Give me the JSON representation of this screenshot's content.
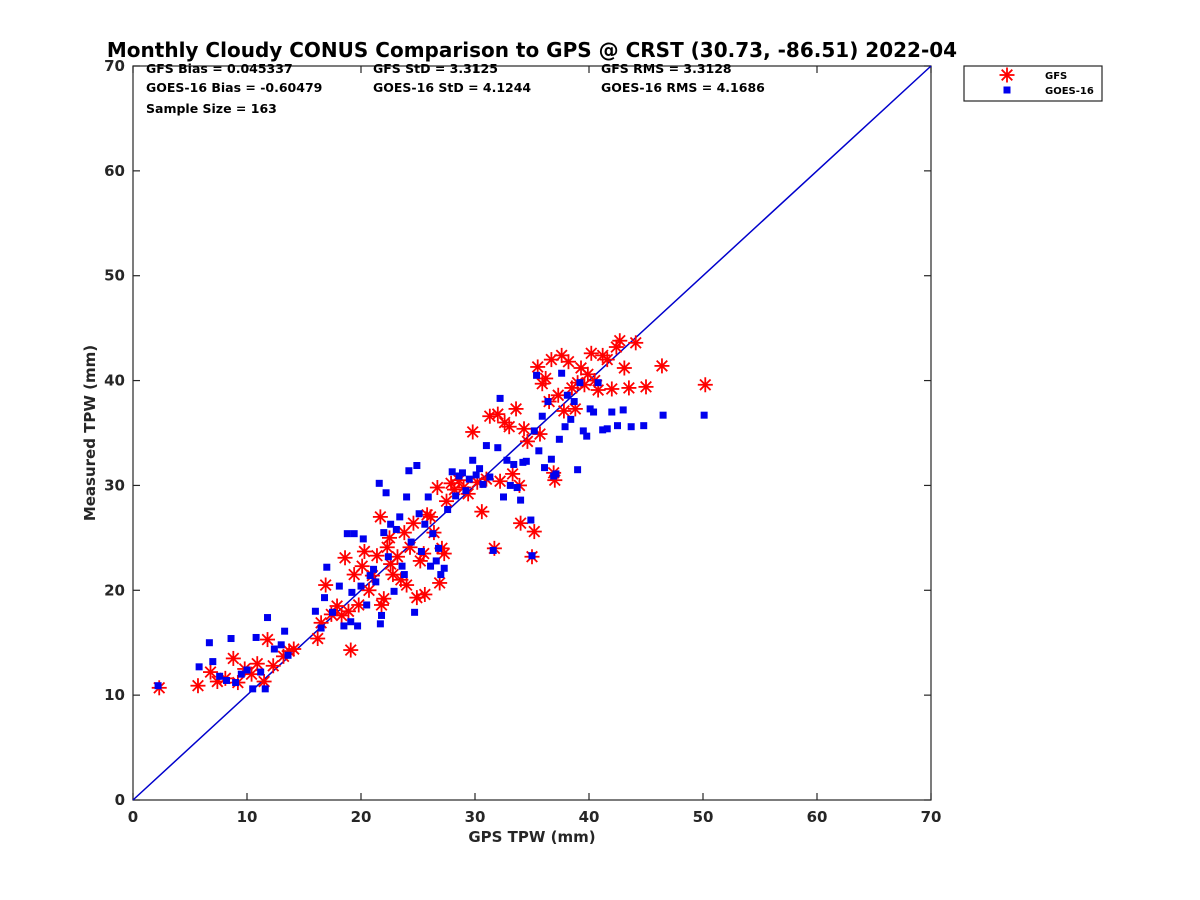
{
  "chart_data": {
    "type": "scatter",
    "title": "Monthly Cloudy CONUS Comparison to GPS @ CRST (30.73, -86.51) 2022-04",
    "xlabel": "GPS TPW (mm)",
    "ylabel": "Measured TPW (mm)",
    "xlim": [
      0,
      70
    ],
    "ylim": [
      0,
      70
    ],
    "xticks": [
      "0",
      "10",
      "20",
      "30",
      "40",
      "50",
      "60",
      "70"
    ],
    "yticks": [
      "0",
      "10",
      "20",
      "30",
      "40",
      "50",
      "60",
      "70"
    ],
    "grid": false,
    "legend_position": "top-right",
    "stats": [
      "GFS Bias = 0.045337",
      "GFS StD = 3.3125",
      "GFS RMS = 3.3128",
      "GOES-16 Bias = -0.60479",
      "GOES-16 StD = 4.1244",
      "GOES-16 RMS = 4.1686",
      "Sample Size = 163"
    ],
    "reference_line": {
      "x": [
        0,
        70
      ],
      "y": [
        0,
        70
      ],
      "color": "#0000cc"
    },
    "series": [
      {
        "name": "GFS",
        "marker": "asterisk",
        "color": "#ff0000",
        "points": [
          [
            2.3,
            10.7
          ],
          [
            5.7,
            10.9
          ],
          [
            6.8,
            12.2
          ],
          [
            7.4,
            11.3
          ],
          [
            8.1,
            11.6
          ],
          [
            8.8,
            13.5
          ],
          [
            9.2,
            11.2
          ],
          [
            9.8,
            12.5
          ],
          [
            10.4,
            12.0
          ],
          [
            10.9,
            13.0
          ],
          [
            11.5,
            11.3
          ],
          [
            11.8,
            15.3
          ],
          [
            12.3,
            12.8
          ],
          [
            13.2,
            13.7
          ],
          [
            13.7,
            14.2
          ],
          [
            14.1,
            14.4
          ],
          [
            16.2,
            15.4
          ],
          [
            16.5,
            16.9
          ],
          [
            16.9,
            20.5
          ],
          [
            17.4,
            17.7
          ],
          [
            17.9,
            18.5
          ],
          [
            18.3,
            17.6
          ],
          [
            18.6,
            23.1
          ],
          [
            18.9,
            18.0
          ],
          [
            19.1,
            14.3
          ],
          [
            19.4,
            21.5
          ],
          [
            19.8,
            18.6
          ],
          [
            20.1,
            22.3
          ],
          [
            20.3,
            23.7
          ],
          [
            20.7,
            20.0
          ],
          [
            21.0,
            21.4
          ],
          [
            21.4,
            23.3
          ],
          [
            21.7,
            27.0
          ],
          [
            21.8,
            18.6
          ],
          [
            22.0,
            19.2
          ],
          [
            22.3,
            24.1
          ],
          [
            22.5,
            25.0
          ],
          [
            22.6,
            22.5
          ],
          [
            22.8,
            21.5
          ],
          [
            23.2,
            23.2
          ],
          [
            23.5,
            21.0
          ],
          [
            23.8,
            25.5
          ],
          [
            24.0,
            20.5
          ],
          [
            24.3,
            24.1
          ],
          [
            24.6,
            26.4
          ],
          [
            24.9,
            19.3
          ],
          [
            25.2,
            22.8
          ],
          [
            25.5,
            23.5
          ],
          [
            25.6,
            19.6
          ],
          [
            25.8,
            27.2
          ],
          [
            26.1,
            27.0
          ],
          [
            26.4,
            25.5
          ],
          [
            26.7,
            29.8
          ],
          [
            26.9,
            20.7
          ],
          [
            27.1,
            24.0
          ],
          [
            27.3,
            23.5
          ],
          [
            27.5,
            28.5
          ],
          [
            27.9,
            30.2
          ],
          [
            28.2,
            29.6
          ],
          [
            28.6,
            30.5
          ],
          [
            29.0,
            29.8
          ],
          [
            29.4,
            29.2
          ],
          [
            29.8,
            35.1
          ],
          [
            30.2,
            30.3
          ],
          [
            30.6,
            27.5
          ],
          [
            31.0,
            30.6
          ],
          [
            31.3,
            36.6
          ],
          [
            31.7,
            24.0
          ],
          [
            32.0,
            36.8
          ],
          [
            32.2,
            30.4
          ],
          [
            32.6,
            36.0
          ],
          [
            33.0,
            35.6
          ],
          [
            33.3,
            31.1
          ],
          [
            33.6,
            37.3
          ],
          [
            33.9,
            30.0
          ],
          [
            34.0,
            26.4
          ],
          [
            34.3,
            35.4
          ],
          [
            34.6,
            34.2
          ],
          [
            35.0,
            23.2
          ],
          [
            35.2,
            25.6
          ],
          [
            35.5,
            41.3
          ],
          [
            35.7,
            34.9
          ],
          [
            35.9,
            39.7
          ],
          [
            36.2,
            40.2
          ],
          [
            36.5,
            38.0
          ],
          [
            36.7,
            42.0
          ],
          [
            36.9,
            31.2
          ],
          [
            37.0,
            30.5
          ],
          [
            37.3,
            38.6
          ],
          [
            37.6,
            42.4
          ],
          [
            37.8,
            37.1
          ],
          [
            38.2,
            41.8
          ],
          [
            38.5,
            39.3
          ],
          [
            38.8,
            37.3
          ],
          [
            39.0,
            39.8
          ],
          [
            39.3,
            41.2
          ],
          [
            39.6,
            39.6
          ],
          [
            39.9,
            40.6
          ],
          [
            40.2,
            42.6
          ],
          [
            40.5,
            40.0
          ],
          [
            40.8,
            39.1
          ],
          [
            41.2,
            42.4
          ],
          [
            41.6,
            42.0
          ],
          [
            42.0,
            39.2
          ],
          [
            42.4,
            43.2
          ],
          [
            42.7,
            43.8
          ],
          [
            43.1,
            41.2
          ],
          [
            43.5,
            39.3
          ],
          [
            44.1,
            43.6
          ],
          [
            45.0,
            39.4
          ],
          [
            46.4,
            41.4
          ],
          [
            50.2,
            39.6
          ]
        ]
      },
      {
        "name": "GOES-16",
        "marker": "square",
        "color": "#0000ee",
        "points": [
          [
            2.2,
            10.9
          ],
          [
            5.8,
            12.7
          ],
          [
            6.7,
            15.0
          ],
          [
            7.0,
            13.2
          ],
          [
            7.6,
            11.8
          ],
          [
            8.2,
            11.4
          ],
          [
            8.6,
            15.4
          ],
          [
            9.0,
            11.2
          ],
          [
            9.5,
            12.0
          ],
          [
            10.0,
            12.4
          ],
          [
            10.5,
            10.6
          ],
          [
            10.8,
            15.5
          ],
          [
            11.2,
            12.2
          ],
          [
            11.6,
            10.6
          ],
          [
            11.8,
            17.4
          ],
          [
            12.4,
            14.4
          ],
          [
            13.0,
            14.8
          ],
          [
            13.3,
            16.1
          ],
          [
            13.6,
            13.8
          ],
          [
            16.0,
            18.0
          ],
          [
            16.5,
            16.4
          ],
          [
            16.8,
            19.3
          ],
          [
            17.0,
            22.2
          ],
          [
            17.5,
            17.9
          ],
          [
            18.1,
            20.4
          ],
          [
            18.5,
            16.6
          ],
          [
            18.8,
            25.4
          ],
          [
            19.1,
            17.0
          ],
          [
            19.2,
            19.8
          ],
          [
            19.4,
            25.4
          ],
          [
            19.7,
            16.6
          ],
          [
            20.0,
            20.4
          ],
          [
            20.2,
            24.9
          ],
          [
            20.5,
            18.6
          ],
          [
            20.8,
            21.4
          ],
          [
            21.1,
            22.0
          ],
          [
            21.3,
            20.8
          ],
          [
            21.6,
            30.2
          ],
          [
            21.7,
            16.8
          ],
          [
            21.8,
            17.6
          ],
          [
            22.0,
            25.5
          ],
          [
            22.2,
            29.3
          ],
          [
            22.4,
            23.2
          ],
          [
            22.6,
            26.3
          ],
          [
            22.9,
            19.9
          ],
          [
            23.1,
            25.8
          ],
          [
            23.4,
            27.0
          ],
          [
            23.6,
            22.3
          ],
          [
            23.8,
            21.5
          ],
          [
            24.0,
            28.9
          ],
          [
            24.2,
            31.4
          ],
          [
            24.4,
            24.6
          ],
          [
            24.7,
            17.9
          ],
          [
            24.9,
            31.9
          ],
          [
            25.1,
            27.3
          ],
          [
            25.3,
            23.7
          ],
          [
            25.6,
            26.3
          ],
          [
            25.9,
            28.9
          ],
          [
            26.1,
            22.3
          ],
          [
            26.3,
            25.4
          ],
          [
            26.6,
            22.8
          ],
          [
            26.8,
            24.0
          ],
          [
            27.0,
            21.5
          ],
          [
            27.3,
            22.1
          ],
          [
            27.6,
            27.7
          ],
          [
            28.0,
            31.3
          ],
          [
            28.3,
            29.0
          ],
          [
            28.6,
            30.9
          ],
          [
            28.9,
            31.2
          ],
          [
            29.2,
            29.5
          ],
          [
            29.5,
            30.6
          ],
          [
            29.8,
            32.4
          ],
          [
            30.1,
            31.0
          ],
          [
            30.4,
            31.6
          ],
          [
            30.7,
            30.1
          ],
          [
            31.0,
            33.8
          ],
          [
            31.3,
            30.8
          ],
          [
            31.6,
            23.8
          ],
          [
            32.0,
            33.6
          ],
          [
            32.2,
            38.3
          ],
          [
            32.5,
            28.9
          ],
          [
            32.8,
            32.4
          ],
          [
            33.1,
            30.0
          ],
          [
            33.4,
            32.0
          ],
          [
            33.7,
            29.8
          ],
          [
            34.0,
            28.6
          ],
          [
            34.2,
            32.2
          ],
          [
            34.5,
            32.3
          ],
          [
            34.9,
            26.7
          ],
          [
            35.0,
            23.3
          ],
          [
            35.2,
            35.2
          ],
          [
            35.4,
            40.5
          ],
          [
            35.6,
            33.3
          ],
          [
            35.9,
            36.6
          ],
          [
            36.1,
            31.7
          ],
          [
            36.4,
            38.0
          ],
          [
            36.7,
            32.5
          ],
          [
            36.9,
            30.9
          ],
          [
            37.1,
            31.1
          ],
          [
            37.4,
            34.4
          ],
          [
            37.6,
            40.7
          ],
          [
            37.9,
            35.6
          ],
          [
            38.1,
            38.6
          ],
          [
            38.4,
            36.3
          ],
          [
            38.7,
            38.0
          ],
          [
            39.0,
            31.5
          ],
          [
            39.2,
            39.8
          ],
          [
            39.5,
            35.2
          ],
          [
            39.8,
            34.7
          ],
          [
            40.1,
            37.3
          ],
          [
            40.4,
            37.0
          ],
          [
            40.8,
            39.8
          ],
          [
            41.2,
            35.3
          ],
          [
            41.6,
            35.4
          ],
          [
            42.0,
            37.0
          ],
          [
            42.5,
            35.7
          ],
          [
            43.0,
            37.2
          ],
          [
            43.7,
            35.6
          ],
          [
            44.8,
            35.7
          ],
          [
            46.5,
            36.7
          ],
          [
            50.1,
            36.7
          ]
        ]
      }
    ]
  }
}
